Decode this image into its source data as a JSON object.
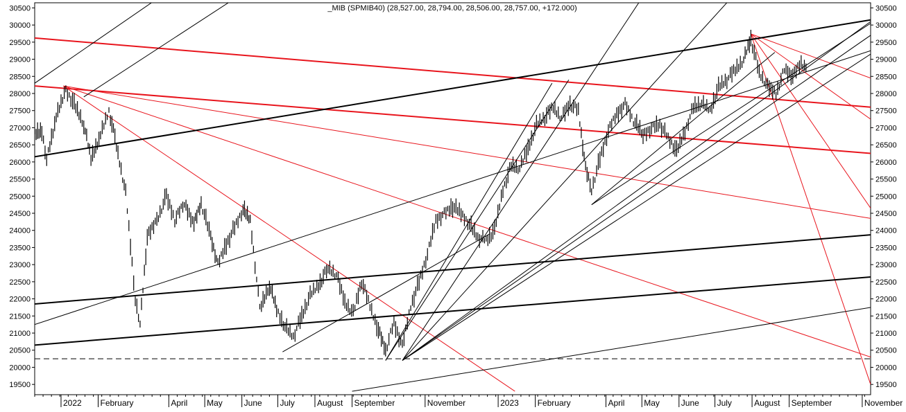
{
  "chart_data": {
    "type": "line",
    "title": "_MIB (SPMIB40) (28,527.00, 28,794.00, 28,506.00, 28,757.00, +172.000)",
    "xlabel": "",
    "ylabel": "",
    "ylim": [
      19200,
      30650
    ],
    "x_domain": [
      "2021-12-10",
      "2023-11-08"
    ],
    "y_ticks": [
      19500,
      20000,
      20500,
      21000,
      21500,
      22000,
      22500,
      23000,
      23500,
      24000,
      24500,
      25000,
      25500,
      26000,
      26500,
      27000,
      27500,
      28000,
      28500,
      29000,
      29500,
      30000,
      30500
    ],
    "x_ticks": [
      {
        "date": "2022-01-01",
        "label": "2022"
      },
      {
        "date": "2022-02-01",
        "label": "February"
      },
      {
        "date": "2022-04-01",
        "label": "April"
      },
      {
        "date": "2022-05-01",
        "label": "May"
      },
      {
        "date": "2022-06-01",
        "label": "June"
      },
      {
        "date": "2022-07-01",
        "label": "July"
      },
      {
        "date": "2022-08-01",
        "label": "August"
      },
      {
        "date": "2022-09-01",
        "label": "September"
      },
      {
        "date": "2022-11-01",
        "label": "November"
      },
      {
        "date": "2023-01-01",
        "label": "2023"
      },
      {
        "date": "2023-02-01",
        "label": "February"
      },
      {
        "date": "2023-04-01",
        "label": "April"
      },
      {
        "date": "2023-05-01",
        "label": "May"
      },
      {
        "date": "2023-06-01",
        "label": "June"
      },
      {
        "date": "2023-07-01",
        "label": "July"
      },
      {
        "date": "2023-08-01",
        "label": "August"
      },
      {
        "date": "2023-09-01",
        "label": "September"
      },
      {
        "date": "2023-11-01",
        "label": "November"
      }
    ],
    "price_series": [
      {
        "date": "2021-12-10",
        "value": 26800
      },
      {
        "date": "2021-12-16",
        "value": 26900
      },
      {
        "date": "2021-12-20",
        "value": 26100
      },
      {
        "date": "2021-12-28",
        "value": 27300
      },
      {
        "date": "2022-01-05",
        "value": 28100
      },
      {
        "date": "2022-01-12",
        "value": 27700
      },
      {
        "date": "2022-01-20",
        "value": 27100
      },
      {
        "date": "2022-01-26",
        "value": 26100
      },
      {
        "date": "2022-02-03",
        "value": 26800
      },
      {
        "date": "2022-02-10",
        "value": 27500
      },
      {
        "date": "2022-02-15",
        "value": 26700
      },
      {
        "date": "2022-02-24",
        "value": 25100
      },
      {
        "date": "2022-03-04",
        "value": 22000
      },
      {
        "date": "2022-03-08",
        "value": 21300
      },
      {
        "date": "2022-03-14",
        "value": 23800
      },
      {
        "date": "2022-03-22",
        "value": 24300
      },
      {
        "date": "2022-03-30",
        "value": 25000
      },
      {
        "date": "2022-04-06",
        "value": 24300
      },
      {
        "date": "2022-04-14",
        "value": 24800
      },
      {
        "date": "2022-04-22",
        "value": 24200
      },
      {
        "date": "2022-04-28",
        "value": 24800
      },
      {
        "date": "2022-05-06",
        "value": 23800
      },
      {
        "date": "2022-05-12",
        "value": 23000
      },
      {
        "date": "2022-05-19",
        "value": 23600
      },
      {
        "date": "2022-05-26",
        "value": 24100
      },
      {
        "date": "2022-06-02",
        "value": 24600
      },
      {
        "date": "2022-06-08",
        "value": 24300
      },
      {
        "date": "2022-06-16",
        "value": 21700
      },
      {
        "date": "2022-06-24",
        "value": 22400
      },
      {
        "date": "2022-06-30",
        "value": 21700
      },
      {
        "date": "2022-07-07",
        "value": 21200
      },
      {
        "date": "2022-07-14",
        "value": 20900
      },
      {
        "date": "2022-07-21",
        "value": 21500
      },
      {
        "date": "2022-07-28",
        "value": 22100
      },
      {
        "date": "2022-08-04",
        "value": 22400
      },
      {
        "date": "2022-08-12",
        "value": 22900
      },
      {
        "date": "2022-08-19",
        "value": 22700
      },
      {
        "date": "2022-08-26",
        "value": 21900
      },
      {
        "date": "2022-09-02",
        "value": 21600
      },
      {
        "date": "2022-09-09",
        "value": 22500
      },
      {
        "date": "2022-09-16",
        "value": 21800
      },
      {
        "date": "2022-09-23",
        "value": 21100
      },
      {
        "date": "2022-09-29",
        "value": 20500
      },
      {
        "date": "2022-10-06",
        "value": 21300
      },
      {
        "date": "2022-10-13",
        "value": 20600
      },
      {
        "date": "2022-10-20",
        "value": 21800
      },
      {
        "date": "2022-10-27",
        "value": 22500
      },
      {
        "date": "2022-11-03",
        "value": 23300
      },
      {
        "date": "2022-11-10",
        "value": 24300
      },
      {
        "date": "2022-11-17",
        "value": 24500
      },
      {
        "date": "2022-11-24",
        "value": 24700
      },
      {
        "date": "2022-12-01",
        "value": 24500
      },
      {
        "date": "2022-12-08",
        "value": 24200
      },
      {
        "date": "2022-12-15",
        "value": 23800
      },
      {
        "date": "2022-12-22",
        "value": 23700
      },
      {
        "date": "2022-12-29",
        "value": 24000
      },
      {
        "date": "2023-01-05",
        "value": 25200
      },
      {
        "date": "2023-01-12",
        "value": 25900
      },
      {
        "date": "2023-01-19",
        "value": 25800
      },
      {
        "date": "2023-01-26",
        "value": 26400
      },
      {
        "date": "2023-02-02",
        "value": 27100
      },
      {
        "date": "2023-02-09",
        "value": 27300
      },
      {
        "date": "2023-02-16",
        "value": 27600
      },
      {
        "date": "2023-02-23",
        "value": 27300
      },
      {
        "date": "2023-03-02",
        "value": 27700
      },
      {
        "date": "2023-03-09",
        "value": 27500
      },
      {
        "date": "2023-03-15",
        "value": 25800
      },
      {
        "date": "2023-03-20",
        "value": 25200
      },
      {
        "date": "2023-03-27",
        "value": 26100
      },
      {
        "date": "2023-04-03",
        "value": 26900
      },
      {
        "date": "2023-04-10",
        "value": 27400
      },
      {
        "date": "2023-04-17",
        "value": 27700
      },
      {
        "date": "2023-04-24",
        "value": 27200
      },
      {
        "date": "2023-05-02",
        "value": 26800
      },
      {
        "date": "2023-05-09",
        "value": 27000
      },
      {
        "date": "2023-05-16",
        "value": 27100
      },
      {
        "date": "2023-05-23",
        "value": 26700
      },
      {
        "date": "2023-05-30",
        "value": 26300
      },
      {
        "date": "2023-06-06",
        "value": 26900
      },
      {
        "date": "2023-06-13",
        "value": 27600
      },
      {
        "date": "2023-06-20",
        "value": 27700
      },
      {
        "date": "2023-06-27",
        "value": 27500
      },
      {
        "date": "2023-07-04",
        "value": 28200
      },
      {
        "date": "2023-07-11",
        "value": 28400
      },
      {
        "date": "2023-07-18",
        "value": 28700
      },
      {
        "date": "2023-07-25",
        "value": 29000
      },
      {
        "date": "2023-07-31",
        "value": 29600
      },
      {
        "date": "2023-08-07",
        "value": 28600
      },
      {
        "date": "2023-08-14",
        "value": 28200
      },
      {
        "date": "2023-08-21",
        "value": 28000
      },
      {
        "date": "2023-08-28",
        "value": 28700
      },
      {
        "date": "2023-09-04",
        "value": 28500
      },
      {
        "date": "2023-09-11",
        "value": 28900
      },
      {
        "date": "2023-09-15",
        "value": 28757
      }
    ],
    "dashed_level": 20250,
    "trendlines": [
      {
        "color": "#e8141c",
        "width": 2,
        "from": [
          "2021-12-10",
          29620
        ],
        "to": [
          "2023-11-08",
          27600
        ]
      },
      {
        "color": "#e8141c",
        "width": 2,
        "from": [
          "2021-12-10",
          28220
        ],
        "to": [
          "2023-11-08",
          26250
        ]
      },
      {
        "color": "#e8141c",
        "width": 1,
        "from": [
          "2022-01-03",
          28220
        ],
        "to": [
          "2023-11-08",
          24350
        ]
      },
      {
        "color": "#e8141c",
        "width": 1,
        "from": [
          "2022-01-03",
          28220
        ],
        "to": [
          "2023-01-15",
          19300
        ]
      },
      {
        "color": "#e8141c",
        "width": 1,
        "from": [
          "2022-01-03",
          28220
        ],
        "to": [
          "2023-11-08",
          20300
        ]
      },
      {
        "color": "#e8141c",
        "width": 1,
        "from": [
          "2023-07-31",
          29740
        ],
        "to": [
          "2023-11-08",
          28450
        ]
      },
      {
        "color": "#e8141c",
        "width": 1,
        "from": [
          "2023-07-31",
          29740
        ],
        "to": [
          "2023-11-08",
          27250
        ]
      },
      {
        "color": "#e8141c",
        "width": 1,
        "from": [
          "2023-07-31",
          29740
        ],
        "to": [
          "2023-11-08",
          24650
        ]
      },
      {
        "color": "#e8141c",
        "width": 1,
        "from": [
          "2023-07-31",
          29740
        ],
        "to": [
          "2023-11-08",
          19500
        ]
      },
      {
        "color": "#000000",
        "width": 2,
        "from": [
          "2021-12-10",
          26150
        ],
        "to": [
          "2023-11-08",
          30150
        ]
      },
      {
        "color": "#000000",
        "width": 2,
        "from": [
          "2021-12-10",
          21850
        ],
        "to": [
          "2023-11-08",
          23870
        ]
      },
      {
        "color": "#000000",
        "width": 2,
        "from": [
          "2021-12-10",
          20650
        ],
        "to": [
          "2023-11-08",
          22640
        ]
      },
      {
        "color": "#000000",
        "width": 1,
        "from": [
          "2021-12-10",
          28300
        ],
        "to": [
          "2022-04-01",
          31000
        ]
      },
      {
        "color": "#000000",
        "width": 1,
        "from": [
          "2022-01-20",
          27900
        ],
        "to": [
          "2022-06-05",
          31000
        ]
      },
      {
        "color": "#000000",
        "width": 1,
        "from": [
          "2021-12-10",
          21250
        ],
        "to": [
          "2023-11-08",
          29250
        ]
      },
      {
        "color": "#000000",
        "width": 1,
        "from": [
          "2022-09-01",
          19300
        ],
        "to": [
          "2023-11-08",
          21750
        ]
      },
      {
        "color": "#000000",
        "width": 1,
        "from": [
          "2022-07-05",
          20450
        ],
        "to": [
          "2022-12-25",
          23900
        ]
      },
      {
        "color": "#000000",
        "width": 1,
        "from": [
          "2022-09-29",
          20200
        ],
        "to": [
          "2023-03-01",
          28400
        ]
      },
      {
        "color": "#000000",
        "width": 1,
        "from": [
          "2022-09-29",
          20200
        ],
        "to": [
          "2023-02-15",
          28300
        ]
      },
      {
        "color": "#000000",
        "width": 1,
        "from": [
          "2022-10-13",
          20200
        ],
        "to": [
          "2023-05-05",
          31000
        ]
      },
      {
        "color": "#000000",
        "width": 1,
        "from": [
          "2022-10-13",
          20200
        ],
        "to": [
          "2023-07-20",
          31000
        ]
      },
      {
        "color": "#000000",
        "width": 1,
        "from": [
          "2022-10-13",
          20200
        ],
        "to": [
          "2023-11-08",
          30100
        ]
      },
      {
        "color": "#000000",
        "width": 1,
        "from": [
          "2022-10-13",
          20200
        ],
        "to": [
          "2023-11-08",
          29700
        ]
      },
      {
        "color": "#000000",
        "width": 1,
        "from": [
          "2022-10-13",
          20200
        ],
        "to": [
          "2023-11-08",
          29150
        ]
      },
      {
        "color": "#000000",
        "width": 1,
        "from": [
          "2023-03-20",
          24750
        ],
        "to": [
          "2023-11-08",
          30050
        ]
      },
      {
        "color": "#000000",
        "width": 1,
        "from": [
          "2023-03-20",
          24750
        ],
        "to": [
          "2023-08-20",
          29200
        ]
      }
    ]
  }
}
